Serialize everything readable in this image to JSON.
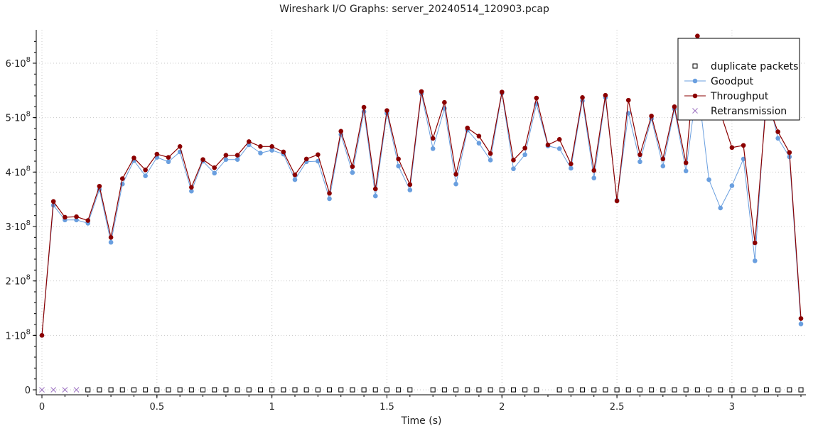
{
  "chart_data": {
    "type": "line",
    "title": "Wireshark I/O Graphs: server_20240514_120903.pcap",
    "xlabel": "Time (s)",
    "ylabel": "",
    "xlim": [
      -0.02,
      3.32
    ],
    "ylim": [
      -10000000.0,
      660000000
    ],
    "x_ticks": [
      0,
      0.5,
      1,
      1.5,
      2,
      2.5,
      3
    ],
    "x_tick_labels": [
      "0",
      "0.5",
      "1",
      "1.5",
      "2",
      "2.5",
      "3"
    ],
    "y_ticks": [
      0,
      100000000,
      200000000,
      300000000,
      400000000,
      500000000,
      600000000
    ],
    "y_tick_labels": [
      {
        "base": "0",
        "exp": ""
      },
      {
        "base": "1·10",
        "exp": "8"
      },
      {
        "base": "2·10",
        "exp": "8"
      },
      {
        "base": "3·10",
        "exp": "8"
      },
      {
        "base": "4·10",
        "exp": "8"
      },
      {
        "base": "5·10",
        "exp": "8"
      },
      {
        "base": "6·10",
        "exp": "8"
      }
    ],
    "grid": true,
    "legend_position": "top-right",
    "x": [
      0,
      0.05,
      0.1,
      0.15,
      0.2,
      0.25,
      0.3,
      0.35,
      0.4,
      0.45,
      0.5,
      0.55,
      0.6,
      0.65,
      0.7,
      0.75,
      0.8,
      0.85,
      0.9,
      0.95,
      1,
      1.05,
      1.1,
      1.15,
      1.2,
      1.25,
      1.3,
      1.35,
      1.4,
      1.45,
      1.5,
      1.55,
      1.6,
      1.65,
      1.7,
      1.75,
      1.8,
      1.85,
      1.9,
      1.95,
      2,
      2.05,
      2.1,
      2.15,
      2.2,
      2.25,
      2.3,
      2.35,
      2.4,
      2.45,
      2.5,
      2.55,
      2.6,
      2.65,
      2.7,
      2.75,
      2.8,
      2.85,
      2.9,
      2.95,
      3,
      3.05,
      3.1,
      3.15,
      3.2,
      3.25,
      3.3
    ],
    "series": [
      {
        "name": "duplicate packets",
        "color": "#000000",
        "marker": "square",
        "values": [
          null,
          null,
          null,
          null,
          0,
          0,
          0,
          0,
          0,
          0,
          0,
          0,
          0,
          0,
          0,
          0,
          0,
          0,
          0,
          0,
          0,
          0,
          0,
          0,
          0,
          0,
          0,
          0,
          0,
          0,
          0,
          0,
          0,
          null,
          0,
          0,
          0,
          0,
          0,
          0,
          0,
          0,
          0,
          0,
          null,
          0,
          0,
          0,
          0,
          0,
          0,
          0,
          0,
          0,
          0,
          0,
          0,
          0,
          0,
          0,
          0,
          0,
          0,
          0,
          0,
          0,
          0
        ]
      },
      {
        "name": "Goodput",
        "color": "#6a9fdf",
        "marker": "circle",
        "values": [
          100000000,
          339000000,
          312000000,
          312000000,
          306000000,
          368000000,
          271000000,
          378000000,
          421000000,
          393000000,
          427000000,
          419000000,
          437000000,
          365000000,
          420000000,
          398000000,
          423000000,
          423000000,
          450000000,
          435000000,
          440000000,
          433000000,
          386000000,
          419000000,
          420000000,
          351000000,
          469000000,
          399000000,
          511000000,
          356000000,
          508000000,
          411000000,
          367000000,
          544000000,
          443000000,
          517000000,
          378000000,
          477000000,
          453000000,
          422000000,
          545000000,
          406000000,
          432000000,
          525000000,
          448000000,
          443000000,
          407000000,
          531000000,
          389000000,
          537000000,
          348000000,
          508000000,
          419000000,
          498000000,
          411000000,
          516000000,
          402000000,
          565000000,
          386000000,
          334000000,
          375000000,
          424000000,
          237000000,
          550000000,
          462000000,
          428000000,
          121000000
        ]
      },
      {
        "name": "Throughput",
        "color": "#8b0000",
        "marker": "circle",
        "values": [
          100000000,
          346000000,
          317000000,
          318000000,
          311000000,
          374000000,
          280000000,
          388000000,
          426000000,
          404000000,
          433000000,
          427000000,
          447000000,
          372000000,
          423000000,
          408000000,
          431000000,
          431000000,
          456000000,
          447000000,
          447000000,
          437000000,
          395000000,
          424000000,
          432000000,
          361000000,
          475000000,
          410000000,
          519000000,
          369000000,
          513000000,
          424000000,
          377000000,
          548000000,
          462000000,
          528000000,
          396000000,
          481000000,
          466000000,
          434000000,
          547000000,
          422000000,
          444000000,
          536000000,
          450000000,
          460000000,
          415000000,
          537000000,
          403000000,
          541000000,
          347000000,
          532000000,
          432000000,
          503000000,
          424000000,
          520000000,
          417000000,
          650000000,
          516000000,
          509000000,
          445000000,
          449000000,
          270000000,
          532000000,
          474000000,
          436000000,
          131000000
        ]
      },
      {
        "name": "Retransmission",
        "color": "#9b6fc0",
        "marker": "x",
        "values": [
          0,
          0,
          0,
          0,
          null,
          null,
          null,
          null,
          null,
          null,
          null,
          null,
          null,
          null,
          null,
          null,
          null,
          null,
          null,
          null,
          null,
          null,
          null,
          null,
          null,
          null,
          null,
          null,
          null,
          null,
          null,
          null,
          null,
          null,
          null,
          null,
          null,
          null,
          null,
          null,
          null,
          null,
          null,
          null,
          null,
          null,
          null,
          null,
          null,
          null,
          null,
          null,
          null,
          null,
          null,
          null,
          null,
          null,
          null,
          null,
          null,
          null,
          null,
          null,
          null,
          null,
          null
        ]
      }
    ]
  }
}
